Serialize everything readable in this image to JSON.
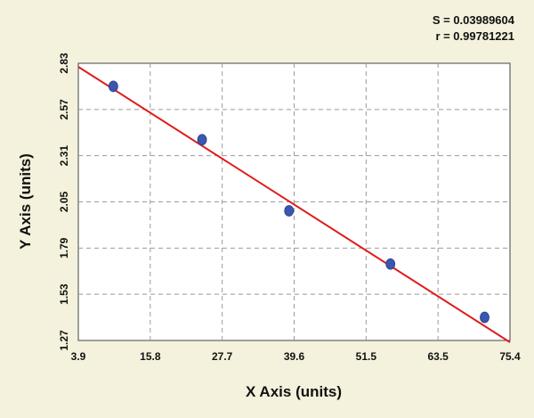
{
  "chart_data": {
    "type": "scatter",
    "xlabel": "X Axis (units)",
    "ylabel": "Y Axis (units)",
    "xlim": [
      3.9,
      75.4
    ],
    "ylim": [
      1.27,
      2.83
    ],
    "x_ticks": [
      "3.9",
      "15.8",
      "27.7",
      "39.6",
      "51.5",
      "63.5",
      "75.4"
    ],
    "y_ticks": [
      "1.27",
      "1.53",
      "1.79",
      "2.05",
      "2.31",
      "2.57",
      "2.83"
    ],
    "grid": true,
    "series": [
      {
        "x": [
          9.7,
          24.4,
          38.8,
          55.6,
          71.2
        ],
        "y": [
          2.7,
          2.4,
          2.0,
          1.7,
          1.4
        ]
      }
    ],
    "fit_line": {
      "x": [
        3.9,
        75.4
      ],
      "y": [
        2.81,
        1.26
      ]
    },
    "annotations": [
      "S = 0.03989604",
      "r = 0.99781221"
    ],
    "colors": {
      "points": "#3a56b0",
      "line": "#e01b1b",
      "background": "#f4f2dc"
    }
  }
}
